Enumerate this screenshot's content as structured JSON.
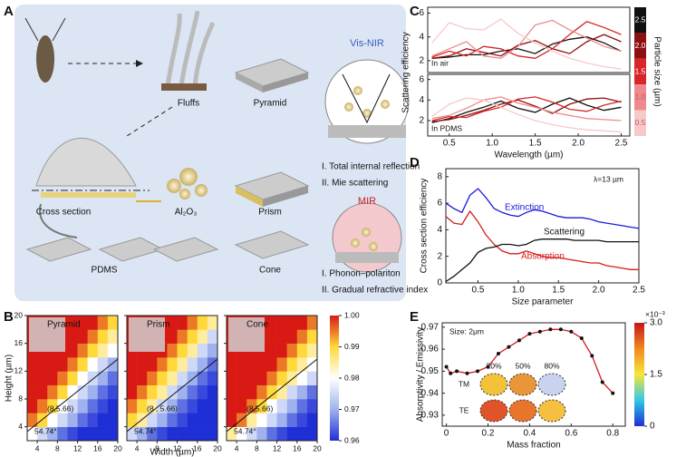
{
  "panel_labels": [
    "A",
    "B",
    "C",
    "D",
    "E"
  ],
  "diagram": {
    "vis_nir": "Vis-NIR",
    "fluffs": "Fluffs",
    "pyramid": "Pyramid",
    "cross_section": "Cross section",
    "al2o3": "Al₂O₃",
    "prism": "Prism",
    "vis_mech_1": "I. Total internal reflection",
    "vis_mech_2": "II. Mie scattering",
    "mir": "MIR",
    "pdms": "PDMS",
    "cone": "Cone",
    "mir_mech_1": "I. Phonon–polariton",
    "mir_mech_2": "II. Gradual refractive index"
  },
  "chart_data": [
    {
      "type": "heatmap",
      "title": "Pyramid",
      "y_label": "Height (µm)",
      "xlim": [
        2,
        20
      ],
      "ylim": [
        2,
        20
      ],
      "xticks": [
        4,
        8,
        12,
        16,
        20
      ],
      "yticks": [
        4,
        8,
        12,
        16,
        20
      ],
      "annotations": [
        "(8,5.66)",
        "54.74°"
      ],
      "clim": [
        0.96,
        1.0
      ],
      "colormap": [
        "#1f2fd6",
        "#9fb2ee",
        "#ffffff",
        "#ffd83a",
        "#d91a14"
      ],
      "values": [
        [
          0.98,
          0.975,
          0.97,
          0.965,
          0.962,
          0.96,
          0.96,
          0.96,
          0.96
        ],
        [
          0.995,
          0.99,
          0.98,
          0.975,
          0.97,
          0.965,
          0.962,
          0.96,
          0.96
        ],
        [
          1,
          0.995,
          0.99,
          0.98,
          0.975,
          0.97,
          0.965,
          0.962,
          0.96
        ],
        [
          1,
          1,
          0.995,
          0.99,
          0.98,
          0.975,
          0.97,
          0.965,
          0.962
        ],
        [
          1,
          1,
          1,
          0.995,
          0.99,
          0.98,
          0.975,
          0.97,
          0.965
        ],
        [
          1,
          1,
          1,
          1,
          0.995,
          0.99,
          0.98,
          0.975,
          0.97
        ],
        [
          1,
          1,
          1,
          1,
          1,
          0.995,
          0.99,
          0.985,
          0.98
        ],
        [
          1,
          1,
          1,
          1,
          1,
          1,
          0.995,
          0.99,
          0.985
        ],
        [
          1,
          1,
          1,
          1,
          1,
          1,
          1,
          0.995,
          0.99
        ]
      ]
    },
    {
      "type": "heatmap",
      "title": "Prism",
      "x_label": "Width (µm)",
      "xlim": [
        2,
        20
      ],
      "ylim": [
        2,
        20
      ],
      "xticks": [
        4,
        8,
        12,
        16,
        20
      ],
      "yticks": [
        4,
        8,
        12,
        16,
        20
      ],
      "annotations": [
        "(8 , 5.66)",
        "54.74°"
      ],
      "clim": [
        0.96,
        1.0
      ],
      "colormap": [
        "#1f2fd6",
        "#9fb2ee",
        "#ffffff",
        "#ffd83a",
        "#d91a14"
      ],
      "values": [
        [
          0.975,
          0.97,
          0.965,
          0.962,
          0.96,
          0.96,
          0.96,
          0.96,
          0.96
        ],
        [
          0.99,
          0.985,
          0.975,
          0.97,
          0.965,
          0.962,
          0.96,
          0.96,
          0.96
        ],
        [
          0.995,
          0.99,
          0.985,
          0.975,
          0.97,
          0.965,
          0.962,
          0.96,
          0.96
        ],
        [
          1,
          0.995,
          0.99,
          0.985,
          0.975,
          0.97,
          0.965,
          0.962,
          0.96
        ],
        [
          1,
          1,
          0.995,
          0.99,
          0.985,
          0.975,
          0.97,
          0.965,
          0.962
        ],
        [
          1,
          1,
          1,
          0.995,
          0.99,
          0.985,
          0.975,
          0.97,
          0.965
        ],
        [
          1,
          1,
          1,
          1,
          0.995,
          0.99,
          0.985,
          0.975,
          0.97
        ],
        [
          1,
          1,
          1,
          1,
          1,
          0.995,
          0.99,
          0.985,
          0.975
        ],
        [
          1,
          1,
          1,
          1,
          1,
          1,
          0.995,
          0.99,
          0.985
        ]
      ]
    },
    {
      "type": "heatmap",
      "title": "Cone",
      "xlim": [
        2,
        20
      ],
      "ylim": [
        2,
        20
      ],
      "xticks": [
        4,
        8,
        12,
        16,
        20
      ],
      "yticks": [
        4,
        8,
        12,
        16,
        20
      ],
      "annotations": [
        "(8,5.66)",
        "54.74°"
      ],
      "clim": [
        0.96,
        1.0
      ],
      "colormap": [
        "#1f2fd6",
        "#9fb2ee",
        "#ffffff",
        "#ffd83a",
        "#d91a14"
      ],
      "colorbar_ticks": [
        {
          "value": 1.0,
          "label": "1.00"
        },
        0.99,
        0.98,
        0.97,
        0.96
      ],
      "values": [
        [
          0.985,
          0.98,
          0.975,
          0.97,
          0.965,
          0.962,
          0.96,
          0.96,
          0.96
        ],
        [
          1,
          0.995,
          0.985,
          0.98,
          0.975,
          0.97,
          0.965,
          0.962,
          0.96
        ],
        [
          1,
          1,
          0.995,
          0.99,
          0.98,
          0.975,
          0.97,
          0.965,
          0.962
        ],
        [
          1,
          1,
          1,
          0.995,
          0.99,
          0.985,
          0.975,
          0.97,
          0.965
        ],
        [
          1,
          1,
          1,
          1,
          0.995,
          0.99,
          0.985,
          0.98,
          0.975
        ],
        [
          1,
          1,
          1,
          1,
          1,
          0.995,
          0.99,
          0.985,
          0.98
        ],
        [
          1,
          1,
          1,
          1,
          1,
          1,
          0.995,
          0.99,
          0.985
        ],
        [
          1,
          1,
          1,
          1,
          1,
          1,
          1,
          0.995,
          0.99
        ],
        [
          1,
          1,
          1,
          1,
          1,
          1,
          1,
          1,
          0.995
        ]
      ]
    },
    {
      "type": "line",
      "y_label": "Scattering efficiency",
      "annotation": "In air",
      "legend_title": "Particle size (µm)",
      "legend": "right",
      "x": [
        0.3,
        0.5,
        0.7,
        0.9,
        1.1,
        1.3,
        1.5,
        1.7,
        1.9,
        2.1,
        2.3,
        2.5
      ],
      "xlim": [
        0.25,
        2.6
      ],
      "ylim": [
        1,
        6.5
      ],
      "yticks": [
        2,
        4,
        6
      ],
      "series": [
        {
          "name": "2.5",
          "color": "#111111",
          "values": [
            2.2,
            2.3,
            2.5,
            2.5,
            2.8,
            3.0,
            2.6,
            3.4,
            3.8,
            4.0,
            3.5,
            2.8
          ]
        },
        {
          "name": "2.0",
          "color": "#8e0f12",
          "values": [
            2.2,
            2.4,
            3.0,
            2.7,
            2.4,
            3.3,
            3.7,
            3.0,
            2.6,
            3.6,
            4.2,
            3.6
          ]
        },
        {
          "name": "1.5",
          "color": "#d7252a",
          "values": [
            2.3,
            2.8,
            2.4,
            3.2,
            3.0,
            2.4,
            2.2,
            3.0,
            4.2,
            5.3,
            4.8,
            4.2
          ]
        },
        {
          "name": "1.0",
          "color": "#ee8a8c",
          "values": [
            2.4,
            3.0,
            3.6,
            2.4,
            2.2,
            3.2,
            5.0,
            5.4,
            4.6,
            3.9,
            3.2,
            2.8
          ]
        },
        {
          "name": "0.5",
          "color": "#f7c9c9",
          "values": [
            3.5,
            5.2,
            4.7,
            4.6,
            5.5,
            4.3,
            3.5,
            2.8,
            2.2,
            1.8,
            1.5,
            1.3
          ]
        }
      ]
    },
    {
      "type": "line",
      "x_label": "Wavelength (µm)",
      "annotation": "In PDMS",
      "x": [
        0.3,
        0.5,
        0.7,
        0.9,
        1.1,
        1.3,
        1.5,
        1.7,
        1.9,
        2.1,
        2.3,
        2.5
      ],
      "xlim": [
        0.25,
        2.6
      ],
      "ylim": [
        0.5,
        6.5
      ],
      "xticks": [
        0.5,
        {
          "value": 1.0,
          "label": "1.0"
        },
        1.5,
        {
          "value": 2.0,
          "label": "2.0"
        },
        2.5
      ],
      "yticks": [
        2,
        4,
        6
      ],
      "series": [
        {
          "color": "#111111",
          "values": [
            1.8,
            2.2,
            2.8,
            3.3,
            3.9,
            3.2,
            2.8,
            3.6,
            4.2,
            3.5,
            3.0,
            3.3
          ]
        },
        {
          "color": "#8e0f12",
          "values": [
            1.9,
            2.1,
            2.5,
            3.0,
            3.6,
            4.0,
            3.4,
            2.7,
            3.6,
            4.1,
            4.2,
            3.8
          ]
        },
        {
          "color": "#d7252a",
          "values": [
            2.0,
            2.4,
            2.3,
            2.9,
            3.3,
            4.1,
            4.3,
            3.8,
            3.1,
            2.9,
            3.5,
            3.9
          ]
        },
        {
          "color": "#ee8a8c",
          "values": [
            2.2,
            2.5,
            3.2,
            4.0,
            4.3,
            3.7,
            3.3,
            2.8,
            2.5,
            2.2,
            2.1,
            2.0
          ]
        },
        {
          "color": "#f7c9c9",
          "values": [
            2.4,
            3.6,
            4.2,
            4.0,
            3.3,
            2.6,
            2.0,
            1.6,
            1.3,
            1.1,
            1.0,
            0.9
          ]
        }
      ]
    },
    {
      "type": "line",
      "x_label": "Size parameter",
      "y_label": "Cross section efficiency",
      "annotation": "λ=13 µm",
      "x": [
        0.1,
        0.2,
        0.3,
        0.4,
        0.5,
        0.6,
        0.7,
        0.8,
        0.9,
        1.0,
        1.1,
        1.2,
        1.3,
        1.4,
        1.5,
        1.6,
        1.7,
        1.8,
        1.9,
        2.0,
        2.1,
        2.2,
        2.3,
        2.4,
        2.5
      ],
      "xlim": [
        0.1,
        2.5
      ],
      "ylim": [
        0,
        8.6
      ],
      "xticks": [
        0.5,
        {
          "value": 1.0,
          "label": "1.0"
        },
        1.5,
        {
          "value": 2.0,
          "label": "2.0"
        },
        2.5
      ],
      "yticks": [
        0,
        2,
        4,
        6,
        8
      ],
      "series": [
        {
          "name": "Extinction",
          "color": "#1b1bd6",
          "values": [
            6.0,
            5.6,
            5.3,
            6.6,
            7.1,
            6.4,
            5.6,
            5.3,
            5.1,
            5.0,
            5.3,
            5.5,
            5.4,
            5.2,
            5.0,
            4.9,
            4.9,
            4.9,
            4.8,
            4.6,
            4.5,
            4.4,
            4.3,
            4.2,
            4.1
          ]
        },
        {
          "name": "Absorption",
          "color": "#d61b1b",
          "values": [
            5.0,
            4.5,
            4.4,
            5.4,
            4.6,
            3.6,
            2.9,
            2.4,
            2.2,
            2.2,
            2.4,
            2.2,
            2.0,
            1.9,
            1.9,
            1.8,
            1.7,
            1.6,
            1.5,
            1.5,
            1.3,
            1.2,
            1.1,
            1.0,
            1.0
          ]
        },
        {
          "name": "Scattering",
          "color": "#111111",
          "values": [
            0.1,
            0.5,
            1.0,
            1.5,
            2.3,
            2.6,
            2.7,
            2.9,
            2.9,
            2.8,
            2.9,
            3.2,
            3.3,
            3.3,
            3.3,
            3.3,
            3.2,
            3.2,
            3.2,
            3.2,
            3.1,
            3.1,
            3.1,
            3.1,
            3.1
          ]
        }
      ]
    },
    {
      "type": "line",
      "markers": true,
      "x_label": "Mass fraction",
      "y_label": "Absorptivity / Emissivity",
      "annotation": "Size: 2μm",
      "inset": {
        "columns": [
          "20%",
          "50%",
          "80%"
        ],
        "rows": [
          "TM",
          "TE"
        ]
      },
      "x": [
        0,
        0.02,
        0.05,
        0.1,
        0.15,
        0.2,
        0.25,
        0.3,
        0.35,
        0.4,
        0.45,
        0.5,
        0.55,
        0.6,
        0.65,
        0.7,
        0.75,
        0.8
      ],
      "xlim": [
        -0.02,
        0.86
      ],
      "ylim": [
        0.925,
        0.972
      ],
      "xticks": [
        0,
        0.2,
        0.4,
        0.6,
        0.8
      ],
      "yticks": [
        0.93,
        0.94,
        0.95,
        0.96,
        0.97
      ],
      "series": [
        {
          "color": "#d61b1b",
          "marker_color": "#111111",
          "values": [
            0.952,
            0.949,
            0.95,
            0.949,
            0.95,
            0.952,
            0.958,
            0.961,
            0.964,
            0.967,
            0.968,
            0.969,
            0.969,
            0.968,
            0.965,
            0.957,
            0.945,
            0.94
          ]
        }
      ],
      "colorbar": {
        "clim": [
          0,
          3.0
        ],
        "ticks": [
          0,
          1.5,
          {
            "value": 3.0,
            "label": "3.0"
          }
        ],
        "exponent": "×10⁻³",
        "colormap": [
          "#1f2fd6",
          "#2fc9e6",
          "#f6e63a",
          "#f08a1c",
          "#c8141a"
        ]
      }
    }
  ]
}
